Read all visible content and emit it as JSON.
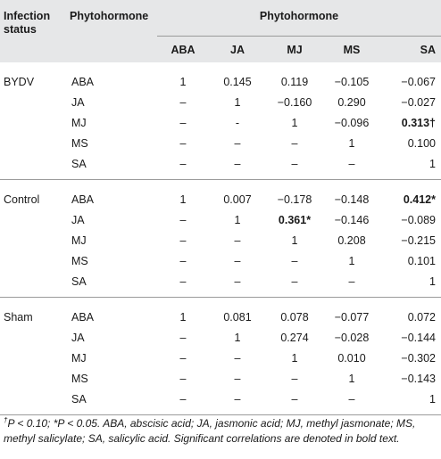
{
  "header": {
    "col0": "Infection status",
    "col1": "Phytohormone",
    "span": "Phytohormone",
    "subcols": [
      "ABA",
      "JA",
      "MJ",
      "MS",
      "SA"
    ]
  },
  "groups": [
    {
      "status": "BYDV",
      "rows": [
        {
          "hormone": "ABA",
          "cells": [
            "1",
            "0.145",
            "0.119",
            "−0.105",
            "−0.067"
          ]
        },
        {
          "hormone": "JA",
          "cells": [
            "–",
            "1",
            "−0.160",
            "0.290",
            "−0.027"
          ]
        },
        {
          "hormone": "MJ",
          "cells": [
            "–",
            "-",
            "1",
            "−0.096",
            "0.313†"
          ]
        },
        {
          "hormone": "MS",
          "cells": [
            "–",
            "–",
            "–",
            "1",
            "0.100"
          ]
        },
        {
          "hormone": "SA",
          "cells": [
            "–",
            "–",
            "–",
            "–",
            "1"
          ]
        }
      ]
    },
    {
      "status": "Control",
      "rows": [
        {
          "hormone": "ABA",
          "cells": [
            "1",
            "0.007",
            "−0.178",
            "−0.148",
            "0.412*"
          ]
        },
        {
          "hormone": "JA",
          "cells": [
            "–",
            "1",
            "0.361*",
            "−0.146",
            "−0.089"
          ]
        },
        {
          "hormone": "MJ",
          "cells": [
            "–",
            "–",
            "1",
            "0.208",
            "−0.215"
          ]
        },
        {
          "hormone": "MS",
          "cells": [
            "–",
            "–",
            "–",
            "1",
            "0.101"
          ]
        },
        {
          "hormone": "SA",
          "cells": [
            "–",
            "–",
            "–",
            "–",
            "1"
          ]
        }
      ]
    },
    {
      "status": "Sham",
      "rows": [
        {
          "hormone": "ABA",
          "cells": [
            "1",
            "0.081",
            "0.078",
            "−0.077",
            "0.072"
          ]
        },
        {
          "hormone": "JA",
          "cells": [
            "–",
            "1",
            "0.274",
            "−0.028",
            "−0.144"
          ]
        },
        {
          "hormone": "MJ",
          "cells": [
            "–",
            "–",
            "1",
            "0.010",
            "−0.302"
          ]
        },
        {
          "hormone": "MS",
          "cells": [
            "–",
            "–",
            "–",
            "1",
            "−0.143"
          ]
        },
        {
          "hormone": "SA",
          "cells": [
            "–",
            "–",
            "–",
            "–",
            "1"
          ]
        }
      ]
    }
  ],
  "bold_cells": [
    "0.313†",
    "0.412*",
    "0.361*"
  ],
  "footnote": {
    "dagger": "†",
    "text": "P < 0.10; *P < 0.05. ABA, abscisic acid; JA, jasmonic acid; MJ, methyl jasmonate; MS, methyl salicylate; SA, salicylic acid. Significant correlations are denoted in bold text."
  }
}
